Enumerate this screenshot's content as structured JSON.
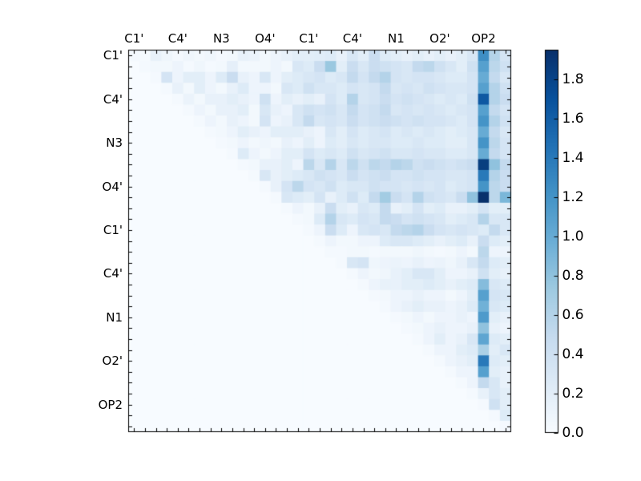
{
  "figure": {
    "background": "#ffffff",
    "frame_color": "#000000",
    "tick_color": "#000000"
  },
  "chart_data": {
    "type": "heatmap",
    "title": "",
    "xlabel": "",
    "ylabel": "",
    "matrix_size": 35,
    "x_tick_labels": [
      "C1'",
      "C4'",
      "N3",
      "O4'",
      "C1'",
      "C4'",
      "N1",
      "O2'",
      "OP2"
    ],
    "y_tick_labels": [
      "C1'",
      "C4'",
      "N3",
      "O4'",
      "C1'",
      "C4'",
      "N1",
      "O2'",
      "OP2"
    ],
    "label_cell_positions": [
      0,
      4,
      8,
      12,
      16,
      20,
      24,
      28,
      32
    ],
    "vmin": 0.0,
    "vmax": 1.95,
    "colormap": {
      "name": "Blues",
      "anchors": [
        "#f7fbff",
        "#deebf7",
        "#c6dbef",
        "#9ecae1",
        "#6baed6",
        "#4292c6",
        "#2171b5",
        "#08519c",
        "#08306b"
      ]
    },
    "colorbar": {
      "tick_values": [
        0.0,
        0.2,
        0.4,
        0.6,
        0.8,
        1.0,
        1.2,
        1.4,
        1.6,
        1.8
      ],
      "tick_labels": [
        "0.0",
        "0.2",
        "0.4",
        "0.6",
        "0.8",
        "1.0",
        "1.2",
        "1.4",
        "1.6",
        "1.8"
      ],
      "position": "right"
    },
    "legend": "none",
    "grid": false,
    "mask": "lower-triangle-zero",
    "values": [
      [
        0.03,
        0.02,
        0.15,
        0.08,
        0.03,
        0.08,
        0.05,
        0.08,
        0.03,
        0.05,
        0.15,
        0.12,
        0.05,
        0.1,
        0.15,
        0.2,
        0.2,
        0.22,
        0.25,
        0.15,
        0.3,
        0.2,
        0.45,
        0.25,
        0.2,
        0.15,
        0.2,
        0.15,
        0.2,
        0.15,
        0.2,
        0.3,
        1.25,
        0.6,
        0.35
      ],
      [
        0,
        0.03,
        0.05,
        0.05,
        0.1,
        0.03,
        0.08,
        0.03,
        0.05,
        0.18,
        0.05,
        0.05,
        0.05,
        0.1,
        0.05,
        0.3,
        0.25,
        0.45,
        0.75,
        0.2,
        0.45,
        0.3,
        0.45,
        0.4,
        0.35,
        0.3,
        0.5,
        0.55,
        0.4,
        0.3,
        0.2,
        0.4,
        1.1,
        0.55,
        0.4
      ],
      [
        0,
        0,
        0.03,
        0.35,
        0.1,
        0.2,
        0.2,
        0.1,
        0.25,
        0.45,
        0.15,
        0.1,
        0.3,
        0.1,
        0.2,
        0.25,
        0.3,
        0.35,
        0.25,
        0.3,
        0.5,
        0.35,
        0.5,
        0.6,
        0.35,
        0.3,
        0.35,
        0.35,
        0.3,
        0.25,
        0.25,
        0.35,
        1.0,
        0.5,
        0.3
      ],
      [
        0,
        0,
        0,
        0.03,
        0.15,
        0.05,
        0.2,
        0.1,
        0.05,
        0.15,
        0.25,
        0.1,
        0.1,
        0.05,
        0.3,
        0.25,
        0.4,
        0.3,
        0.3,
        0.25,
        0.35,
        0.3,
        0.35,
        0.5,
        0.3,
        0.35,
        0.3,
        0.4,
        0.35,
        0.3,
        0.3,
        0.35,
        1.1,
        0.6,
        0.4
      ],
      [
        0,
        0,
        0,
        0,
        0.03,
        0.12,
        0.05,
        0.15,
        0.15,
        0.2,
        0.15,
        0.1,
        0.4,
        0.1,
        0.2,
        0.15,
        0.2,
        0.15,
        0.35,
        0.25,
        0.6,
        0.3,
        0.35,
        0.45,
        0.35,
        0.4,
        0.35,
        0.3,
        0.25,
        0.3,
        0.25,
        0.4,
        1.65,
        0.6,
        0.45
      ],
      [
        0,
        0,
        0,
        0,
        0,
        0.03,
        0.1,
        0.05,
        0.15,
        0.15,
        0.2,
        0.05,
        0.3,
        0.15,
        0.1,
        0.3,
        0.4,
        0.35,
        0.4,
        0.3,
        0.5,
        0.35,
        0.4,
        0.5,
        0.3,
        0.35,
        0.3,
        0.35,
        0.3,
        0.25,
        0.3,
        0.35,
        1.1,
        0.5,
        0.35
      ],
      [
        0,
        0,
        0,
        0,
        0,
        0,
        0.03,
        0.1,
        0.05,
        0.15,
        0.1,
        0.05,
        0.35,
        0.1,
        0.15,
        0.3,
        0.5,
        0.3,
        0.35,
        0.3,
        0.45,
        0.35,
        0.4,
        0.45,
        0.4,
        0.35,
        0.4,
        0.35,
        0.35,
        0.3,
        0.25,
        0.35,
        1.2,
        0.6,
        0.4
      ],
      [
        0,
        0,
        0,
        0,
        0,
        0,
        0,
        0.03,
        0.05,
        0.1,
        0.2,
        0.15,
        0.1,
        0.2,
        0.2,
        0.2,
        0.15,
        0.1,
        0.3,
        0.2,
        0.35,
        0.25,
        0.3,
        0.35,
        0.25,
        0.3,
        0.25,
        0.3,
        0.25,
        0.2,
        0.25,
        0.3,
        1.0,
        0.5,
        0.3
      ],
      [
        0,
        0,
        0,
        0,
        0,
        0,
        0,
        0,
        0.03,
        0.05,
        0.1,
        0.05,
        0.08,
        0.05,
        0.15,
        0.1,
        0.2,
        0.1,
        0.25,
        0.2,
        0.3,
        0.25,
        0.3,
        0.3,
        0.25,
        0.25,
        0.3,
        0.25,
        0.25,
        0.2,
        0.2,
        0.3,
        1.2,
        0.55,
        0.35
      ],
      [
        0,
        0,
        0,
        0,
        0,
        0,
        0,
        0,
        0,
        0.03,
        0.25,
        0.1,
        0.05,
        0.1,
        0.2,
        0.2,
        0.35,
        0.25,
        0.3,
        0.25,
        0.4,
        0.3,
        0.35,
        0.4,
        0.3,
        0.3,
        0.35,
        0.3,
        0.3,
        0.25,
        0.25,
        0.3,
        1.0,
        0.5,
        0.35
      ],
      [
        0,
        0,
        0,
        0,
        0,
        0,
        0,
        0,
        0,
        0,
        0.03,
        0.05,
        0.15,
        0.15,
        0.2,
        0.1,
        0.55,
        0.3,
        0.6,
        0.3,
        0.55,
        0.4,
        0.55,
        0.5,
        0.6,
        0.55,
        0.4,
        0.45,
        0.4,
        0.35,
        0.4,
        0.45,
        1.85,
        0.8,
        0.5
      ],
      [
        0,
        0,
        0,
        0,
        0,
        0,
        0,
        0,
        0,
        0,
        0,
        0.03,
        0.3,
        0.15,
        0.2,
        0.25,
        0.3,
        0.4,
        0.35,
        0.3,
        0.45,
        0.35,
        0.4,
        0.45,
        0.35,
        0.35,
        0.4,
        0.35,
        0.35,
        0.3,
        0.3,
        0.35,
        1.4,
        0.6,
        0.45
      ],
      [
        0,
        0,
        0,
        0,
        0,
        0,
        0,
        0,
        0,
        0,
        0,
        0,
        0.03,
        0.15,
        0.35,
        0.55,
        0.35,
        0.3,
        0.4,
        0.25,
        0.3,
        0.3,
        0.4,
        0.35,
        0.35,
        0.3,
        0.35,
        0.3,
        0.35,
        0.25,
        0.3,
        0.35,
        1.2,
        0.55,
        0.45
      ],
      [
        0,
        0,
        0,
        0,
        0,
        0,
        0,
        0,
        0,
        0,
        0,
        0,
        0,
        0.03,
        0.3,
        0.25,
        0.2,
        0.35,
        0.15,
        0.25,
        0.4,
        0.25,
        0.5,
        0.7,
        0.45,
        0.35,
        0.6,
        0.4,
        0.35,
        0.3,
        0.45,
        0.8,
        1.95,
        0.55,
        0.9
      ],
      [
        0,
        0,
        0,
        0,
        0,
        0,
        0,
        0,
        0,
        0,
        0,
        0,
        0,
        0,
        0.03,
        0.1,
        0.05,
        0.15,
        0.45,
        0.2,
        0.15,
        0.3,
        0.25,
        0.5,
        0.15,
        0.2,
        0.35,
        0.2,
        0.25,
        0.15,
        0.15,
        0.2,
        0.35,
        0.2,
        0.2
      ],
      [
        0,
        0,
        0,
        0,
        0,
        0,
        0,
        0,
        0,
        0,
        0,
        0,
        0,
        0,
        0,
        0.03,
        0.05,
        0.25,
        0.6,
        0.3,
        0.25,
        0.35,
        0.3,
        0.5,
        0.45,
        0.35,
        0.4,
        0.35,
        0.3,
        0.2,
        0.25,
        0.3,
        0.6,
        0.3,
        0.3
      ],
      [
        0,
        0,
        0,
        0,
        0,
        0,
        0,
        0,
        0,
        0,
        0,
        0,
        0,
        0,
        0,
        0,
        0.03,
        0.1,
        0.45,
        0.25,
        0.1,
        0.3,
        0.35,
        0.3,
        0.5,
        0.55,
        0.6,
        0.45,
        0.35,
        0.3,
        0.35,
        0.3,
        0.25,
        0.5,
        0.3
      ],
      [
        0,
        0,
        0,
        0,
        0,
        0,
        0,
        0,
        0,
        0,
        0,
        0,
        0,
        0,
        0,
        0,
        0,
        0.03,
        0.1,
        0.05,
        0.05,
        0.1,
        0.1,
        0.25,
        0.3,
        0.3,
        0.25,
        0.2,
        0.15,
        0.2,
        0.25,
        0.15,
        0.45,
        0.25,
        0.2
      ],
      [
        0,
        0,
        0,
        0,
        0,
        0,
        0,
        0,
        0,
        0,
        0,
        0,
        0,
        0,
        0,
        0,
        0,
        0,
        0.03,
        0.03,
        0.05,
        0.05,
        0.03,
        0.05,
        0.05,
        0.05,
        0.08,
        0.05,
        0.03,
        0.05,
        0.1,
        0.05,
        0.55,
        0.1,
        0.1
      ],
      [
        0,
        0,
        0,
        0,
        0,
        0,
        0,
        0,
        0,
        0,
        0,
        0,
        0,
        0,
        0,
        0,
        0,
        0,
        0,
        0.03,
        0.3,
        0.35,
        0.08,
        0.1,
        0.12,
        0.1,
        0.15,
        0.1,
        0.12,
        0.08,
        0.15,
        0.3,
        0.5,
        0.25,
        0.2
      ],
      [
        0,
        0,
        0,
        0,
        0,
        0,
        0,
        0,
        0,
        0,
        0,
        0,
        0,
        0,
        0,
        0,
        0,
        0,
        0,
        0,
        0.03,
        0.1,
        0.05,
        0.08,
        0.15,
        0.2,
        0.3,
        0.3,
        0.2,
        0.1,
        0.1,
        0.15,
        0.4,
        0.2,
        0.15
      ],
      [
        0,
        0,
        0,
        0,
        0,
        0,
        0,
        0,
        0,
        0,
        0,
        0,
        0,
        0,
        0,
        0,
        0,
        0,
        0,
        0,
        0,
        0.03,
        0.1,
        0.15,
        0.15,
        0.2,
        0.2,
        0.25,
        0.2,
        0.15,
        0.2,
        0.25,
        0.85,
        0.3,
        0.25
      ],
      [
        0,
        0,
        0,
        0,
        0,
        0,
        0,
        0,
        0,
        0,
        0,
        0,
        0,
        0,
        0,
        0,
        0,
        0,
        0,
        0,
        0,
        0,
        0.03,
        0.05,
        0.1,
        0.1,
        0.15,
        0.1,
        0.1,
        0.05,
        0.1,
        0.2,
        1.1,
        0.35,
        0.3
      ],
      [
        0,
        0,
        0,
        0,
        0,
        0,
        0,
        0,
        0,
        0,
        0,
        0,
        0,
        0,
        0,
        0,
        0,
        0,
        0,
        0,
        0,
        0,
        0,
        0.03,
        0.1,
        0.15,
        0.2,
        0.15,
        0.15,
        0.1,
        0.15,
        0.25,
        0.95,
        0.3,
        0.25
      ],
      [
        0,
        0,
        0,
        0,
        0,
        0,
        0,
        0,
        0,
        0,
        0,
        0,
        0,
        0,
        0,
        0,
        0,
        0,
        0,
        0,
        0,
        0,
        0,
        0,
        0.03,
        0.05,
        0.1,
        0.05,
        0.1,
        0.1,
        0.15,
        0.1,
        1.15,
        0.2,
        0.15
      ],
      [
        0,
        0,
        0,
        0,
        0,
        0,
        0,
        0,
        0,
        0,
        0,
        0,
        0,
        0,
        0,
        0,
        0,
        0,
        0,
        0,
        0,
        0,
        0,
        0,
        0,
        0.03,
        0.05,
        0.1,
        0.15,
        0.1,
        0.1,
        0.15,
        0.8,
        0.15,
        0.1
      ],
      [
        0,
        0,
        0,
        0,
        0,
        0,
        0,
        0,
        0,
        0,
        0,
        0,
        0,
        0,
        0,
        0,
        0,
        0,
        0,
        0,
        0,
        0,
        0,
        0,
        0,
        0,
        0.03,
        0.1,
        0.2,
        0.1,
        0.15,
        0.3,
        1.05,
        0.25,
        0.2
      ],
      [
        0,
        0,
        0,
        0,
        0,
        0,
        0,
        0,
        0,
        0,
        0,
        0,
        0,
        0,
        0,
        0,
        0,
        0,
        0,
        0,
        0,
        0,
        0,
        0,
        0,
        0,
        0,
        0.03,
        0.1,
        0.1,
        0.2,
        0.25,
        0.65,
        0.2,
        0.3
      ],
      [
        0,
        0,
        0,
        0,
        0,
        0,
        0,
        0,
        0,
        0,
        0,
        0,
        0,
        0,
        0,
        0,
        0,
        0,
        0,
        0,
        0,
        0,
        0,
        0,
        0,
        0,
        0,
        0,
        0.03,
        0.1,
        0.15,
        0.2,
        1.4,
        0.25,
        0.2
      ],
      [
        0,
        0,
        0,
        0,
        0,
        0,
        0,
        0,
        0,
        0,
        0,
        0,
        0,
        0,
        0,
        0,
        0,
        0,
        0,
        0,
        0,
        0,
        0,
        0,
        0,
        0,
        0,
        0,
        0,
        0.03,
        0.1,
        0.1,
        1.1,
        0.2,
        0.15
      ],
      [
        0,
        0,
        0,
        0,
        0,
        0,
        0,
        0,
        0,
        0,
        0,
        0,
        0,
        0,
        0,
        0,
        0,
        0,
        0,
        0,
        0,
        0,
        0,
        0,
        0,
        0,
        0,
        0,
        0,
        0,
        0.03,
        0.1,
        0.5,
        0.3,
        0.15
      ],
      [
        0,
        0,
        0,
        0,
        0,
        0,
        0,
        0,
        0,
        0,
        0,
        0,
        0,
        0,
        0,
        0,
        0,
        0,
        0,
        0,
        0,
        0,
        0,
        0,
        0,
        0,
        0,
        0,
        0,
        0,
        0,
        0.03,
        0.15,
        0.3,
        0.2
      ],
      [
        0,
        0,
        0,
        0,
        0,
        0,
        0,
        0,
        0,
        0,
        0,
        0,
        0,
        0,
        0,
        0,
        0,
        0,
        0,
        0,
        0,
        0,
        0,
        0,
        0,
        0,
        0,
        0,
        0,
        0,
        0,
        0,
        0.03,
        0.4,
        0.2
      ],
      [
        0,
        0,
        0,
        0,
        0,
        0,
        0,
        0,
        0,
        0,
        0,
        0,
        0,
        0,
        0,
        0,
        0,
        0,
        0,
        0,
        0,
        0,
        0,
        0,
        0,
        0,
        0,
        0,
        0,
        0,
        0,
        0,
        0,
        0.03,
        0.25
      ],
      [
        0,
        0,
        0,
        0,
        0,
        0,
        0,
        0,
        0,
        0,
        0,
        0,
        0,
        0,
        0,
        0,
        0,
        0,
        0,
        0,
        0,
        0,
        0,
        0,
        0,
        0,
        0,
        0,
        0,
        0,
        0,
        0,
        0,
        0,
        0.03
      ]
    ]
  }
}
